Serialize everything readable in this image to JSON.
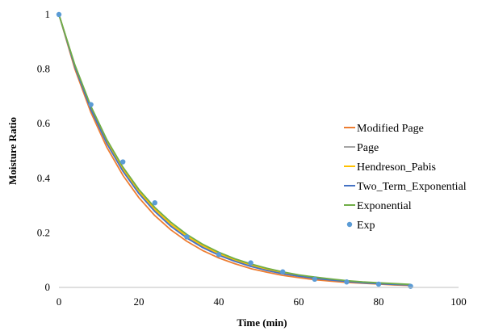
{
  "chart_data": {
    "type": "line",
    "title": "",
    "xlabel": "Time (min)",
    "ylabel": "Moisture Ratio",
    "xlim": [
      0,
      100
    ],
    "ylim": [
      0,
      1
    ],
    "xticks": [
      0,
      20,
      40,
      60,
      80,
      100
    ],
    "yticks": [
      0,
      0.2,
      0.4,
      0.6,
      0.8,
      1
    ],
    "xtick_labels": [
      "0",
      "20",
      "40",
      "60",
      "80",
      "100"
    ],
    "ytick_labels": [
      "0",
      "0.2",
      "0.4",
      "0.6",
      "0.8",
      "1"
    ],
    "grid": false,
    "legend_position": "right",
    "model_x": [
      0,
      4,
      8,
      12,
      16,
      20,
      24,
      28,
      32,
      36,
      40,
      44,
      48,
      52,
      56,
      60,
      64,
      68,
      72,
      76,
      80,
      84,
      88
    ],
    "series": [
      {
        "name": "Modified Page",
        "kind": "line",
        "color": "#ED7D31",
        "values": [
          1,
          0.8,
          0.641,
          0.513,
          0.411,
          0.329,
          0.263,
          0.211,
          0.169,
          0.135,
          0.108,
          0.087,
          0.069,
          0.056,
          0.044,
          0.036,
          0.028,
          0.023,
          0.018,
          0.015,
          0.012,
          0.009,
          0.007
        ]
      },
      {
        "name": "Page",
        "kind": "line",
        "color": "#A5A5A5",
        "values": [
          1,
          0.81,
          0.656,
          0.531,
          0.43,
          0.349,
          0.282,
          0.229,
          0.185,
          0.15,
          0.122,
          0.099,
          0.08,
          0.065,
          0.052,
          0.042,
          0.034,
          0.028,
          0.023,
          0.018,
          0.015,
          0.012,
          0.01
        ]
      },
      {
        "name": "Hendreson_Pabis",
        "kind": "line",
        "color": "#FFC000",
        "values": [
          1,
          0.812,
          0.659,
          0.535,
          0.434,
          0.352,
          0.286,
          0.232,
          0.188,
          0.153,
          0.124,
          0.101,
          0.082,
          0.066,
          0.054,
          0.044,
          0.036,
          0.029,
          0.024,
          0.019,
          0.016,
          0.013,
          0.01
        ]
      },
      {
        "name": "Two_Term_Exponential",
        "kind": "line",
        "color": "#4472C4",
        "values": [
          1,
          0.808,
          0.652,
          0.527,
          0.426,
          0.344,
          0.278,
          0.224,
          0.181,
          0.146,
          0.118,
          0.096,
          0.077,
          0.062,
          0.05,
          0.041,
          0.033,
          0.027,
          0.022,
          0.017,
          0.014,
          0.011,
          0.009
        ]
      },
      {
        "name": "Exponential",
        "kind": "line",
        "color": "#70AD47",
        "values": [
          1,
          0.815,
          0.664,
          0.541,
          0.441,
          0.359,
          0.293,
          0.239,
          0.194,
          0.158,
          0.129,
          0.105,
          0.086,
          0.07,
          0.057,
          0.046,
          0.038,
          0.031,
          0.025,
          0.02,
          0.017,
          0.014,
          0.011
        ]
      },
      {
        "name": "Exp",
        "kind": "scatter",
        "color": "#5B9BD5",
        "x": [
          0,
          8,
          16,
          24,
          32,
          40,
          48,
          56,
          64,
          72,
          80,
          88
        ],
        "values": [
          1,
          0.67,
          0.46,
          0.31,
          0.185,
          0.12,
          0.09,
          0.057,
          0.03,
          0.02,
          0.012,
          0.004
        ]
      }
    ]
  }
}
